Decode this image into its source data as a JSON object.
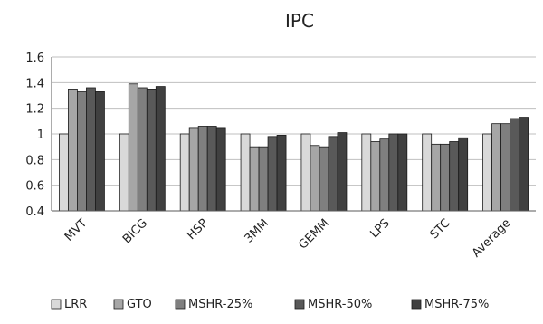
{
  "chart_data": {
    "type": "bar",
    "title": "IPC",
    "xlabel": "",
    "ylabel": "",
    "ylim": [
      0.4,
      1.6
    ],
    "yticks": [
      "0.4",
      "0.6",
      "0.8",
      "1",
      "1.2",
      "1.4",
      "1.6"
    ],
    "grid": true,
    "legend_position": "bottom",
    "categories": [
      "MVT",
      "BICG",
      "HSP",
      "3MM",
      "GEMM",
      "LPS",
      "STC",
      "Average"
    ],
    "series": [
      {
        "name": "LRR",
        "color": "#d9d9d9",
        "values": [
          1.0,
          1.0,
          1.0,
          1.0,
          1.0,
          1.0,
          1.0,
          1.0
        ]
      },
      {
        "name": "GTO",
        "color": "#a6a6a6",
        "values": [
          1.35,
          1.39,
          1.05,
          0.9,
          0.91,
          0.94,
          0.92,
          1.08
        ]
      },
      {
        "name": "MSHR-25%",
        "color": "#7f7f7f",
        "values": [
          1.33,
          1.36,
          1.06,
          0.9,
          0.9,
          0.96,
          0.92,
          1.08
        ]
      },
      {
        "name": "MSHR-50%",
        "color": "#595959",
        "values": [
          1.36,
          1.35,
          1.06,
          0.98,
          0.98,
          1.0,
          0.94,
          1.12
        ]
      },
      {
        "name": "MSHR-75%",
        "color": "#404040",
        "values": [
          1.33,
          1.37,
          1.05,
          0.99,
          1.01,
          1.0,
          0.97,
          1.13
        ]
      }
    ]
  }
}
